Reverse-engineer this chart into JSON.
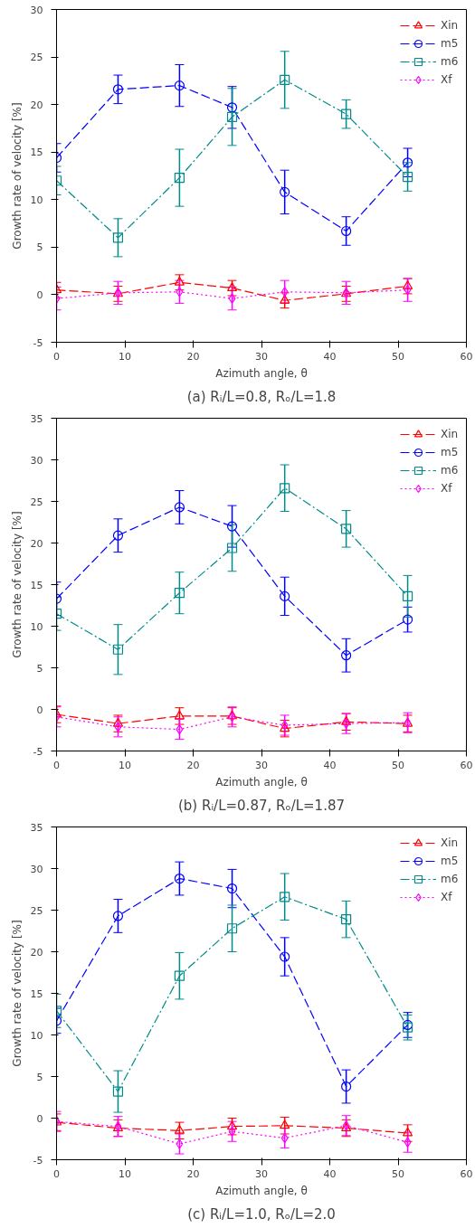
{
  "chart_data": [
    {
      "type": "line",
      "title": "(a) Rᵢ/L=0.8, Rₒ/L=1.8",
      "xlabel": "Azimuth angle, θ",
      "ylabel": "Growth rate of velocity [%]",
      "x": [
        0,
        9,
        18,
        25.7,
        33.4,
        42.4,
        51.4
      ],
      "xlim": [
        0,
        60
      ],
      "xticks": [
        0,
        10,
        20,
        30,
        40,
        50,
        60
      ],
      "ylim": [
        -5,
        30
      ],
      "yticks": [
        -5,
        0,
        5,
        10,
        15,
        20,
        25,
        30
      ],
      "grid": false,
      "legend": "top right",
      "series": [
        {
          "name": "Xin",
          "color": "#ff0000",
          "marker": "triangle",
          "line_style": "dashed",
          "values": [
            0.5,
            0.1,
            1.3,
            0.7,
            -0.6,
            0.1,
            0.9
          ],
          "errors": [
            0.8,
            0.8,
            0.8,
            0.8,
            0.8,
            0.8,
            0.8
          ]
        },
        {
          "name": "m5",
          "color": "#0000ff",
          "marker": "circle",
          "line_style": "dashed",
          "values": [
            14.4,
            21.6,
            22.0,
            19.7,
            10.8,
            6.7,
            13.9
          ],
          "errors": [
            1.5,
            1.5,
            2.2,
            2.2,
            2.3,
            1.5,
            1.5
          ]
        },
        {
          "name": "m6",
          "color": "#008b8b",
          "marker": "square",
          "line_style": "dashdot",
          "values": [
            12.0,
            6.0,
            12.3,
            18.7,
            22.6,
            19.0,
            12.4
          ],
          "errors": [
            1.5,
            2.0,
            3.0,
            3.0,
            3.0,
            1.5,
            1.5
          ]
        },
        {
          "name": "Xf",
          "color": "#ff00ff",
          "marker": "diamond",
          "line_style": "dotted",
          "values": [
            -0.4,
            0.2,
            0.3,
            -0.4,
            0.3,
            0.2,
            0.5
          ],
          "errors": [
            1.2,
            1.2,
            1.2,
            1.2,
            1.2,
            1.2,
            1.2
          ]
        }
      ]
    },
    {
      "type": "line",
      "title": "(b) Rᵢ/L=0.87, Rₒ/L=1.87",
      "xlabel": "Azimuth angle, θ",
      "ylabel": "Growth rate of velocity [%]",
      "x": [
        0,
        9,
        18,
        25.7,
        33.4,
        42.4,
        51.4
      ],
      "xlim": [
        0,
        60
      ],
      "xticks": [
        0,
        10,
        20,
        30,
        40,
        50,
        60
      ],
      "ylim": [
        -5,
        35
      ],
      "yticks": [
        -5,
        0,
        5,
        10,
        15,
        20,
        25,
        30,
        35
      ],
      "grid": false,
      "legend": "top right",
      "series": [
        {
          "name": "Xin",
          "color": "#ff0000",
          "marker": "triangle",
          "line_style": "dashed",
          "values": [
            -0.6,
            -1.7,
            -0.8,
            -0.8,
            -2.3,
            -1.5,
            -1.7
          ],
          "errors": [
            1.0,
            1.0,
            1.0,
            1.0,
            1.0,
            1.0,
            1.0
          ]
        },
        {
          "name": "m5",
          "color": "#0000ff",
          "marker": "circle",
          "line_style": "dashed",
          "values": [
            13.3,
            20.9,
            24.3,
            22.0,
            13.6,
            6.5,
            10.8
          ],
          "errors": [
            2.0,
            2.0,
            2.0,
            2.5,
            2.3,
            2.0,
            1.5
          ]
        },
        {
          "name": "m6",
          "color": "#008b8b",
          "marker": "square",
          "line_style": "dashdot",
          "values": [
            11.5,
            7.2,
            14.0,
            19.4,
            26.6,
            21.7,
            13.6
          ],
          "errors": [
            2.0,
            3.0,
            2.5,
            2.8,
            2.8,
            2.2,
            2.5
          ]
        },
        {
          "name": "Xf",
          "color": "#ff00ff",
          "marker": "diamond",
          "line_style": "dotted",
          "values": [
            -0.9,
            -2.1,
            -2.4,
            -0.9,
            -1.9,
            -1.7,
            -1.6
          ],
          "errors": [
            1.2,
            1.2,
            1.2,
            1.2,
            1.2,
            1.2,
            1.2
          ]
        }
      ]
    },
    {
      "type": "line",
      "title": "(c) Rᵢ/L=1.0, Rₒ/L=2.0",
      "xlabel": "Azimuth angle, θ",
      "ylabel": "Growth rate of velocity [%]",
      "x": [
        0,
        9,
        18,
        25.7,
        33.4,
        42.4,
        51.4
      ],
      "xlim": [
        0,
        60
      ],
      "xticks": [
        0,
        10,
        20,
        30,
        40,
        50,
        60
      ],
      "ylim": [
        -5,
        35
      ],
      "yticks": [
        -5,
        0,
        5,
        10,
        15,
        20,
        25,
        30,
        35
      ],
      "grid": false,
      "legend": "top right",
      "series": [
        {
          "name": "Xin",
          "color": "#ff0000",
          "marker": "triangle",
          "line_style": "dashed",
          "values": [
            -0.5,
            -1.2,
            -1.5,
            -1.0,
            -0.9,
            -1.2,
            -1.8
          ],
          "errors": [
            1.0,
            1.0,
            1.0,
            1.0,
            1.0,
            1.0,
            1.0
          ]
        },
        {
          "name": "m5",
          "color": "#0000ff",
          "marker": "circle",
          "line_style": "dashed",
          "values": [
            11.7,
            24.3,
            28.8,
            27.6,
            19.4,
            3.8,
            11.2
          ],
          "errors": [
            1.5,
            2.0,
            2.0,
            2.3,
            2.3,
            2.0,
            1.5
          ]
        },
        {
          "name": "m6",
          "color": "#008b8b",
          "marker": "square",
          "line_style": "dashdot",
          "values": [
            12.9,
            3.2,
            17.1,
            22.8,
            26.6,
            23.9,
            10.9
          ],
          "errors": [
            2.0,
            2.5,
            2.8,
            2.8,
            2.8,
            2.2,
            1.5
          ]
        },
        {
          "name": "Xf",
          "color": "#ff00ff",
          "marker": "diamond",
          "line_style": "dotted",
          "values": [
            -0.4,
            -1.0,
            -3.1,
            -1.6,
            -2.4,
            -0.9,
            -2.9
          ],
          "errors": [
            1.2,
            1.2,
            1.2,
            1.2,
            1.2,
            1.2,
            1.2
          ]
        }
      ]
    }
  ]
}
